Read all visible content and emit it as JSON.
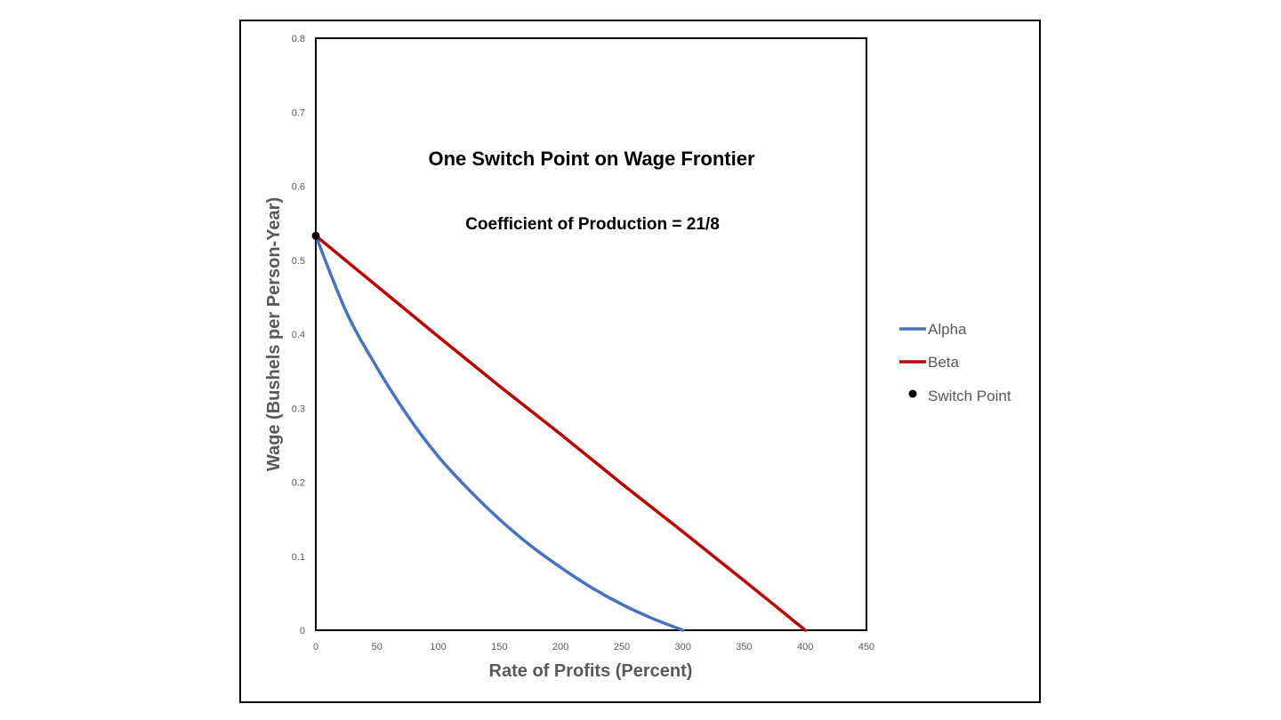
{
  "chart_data": {
    "type": "line",
    "title": "One Switch Point on Wage Frontier",
    "subtitle": "Coefficient of Production = 21/8",
    "xlabel": "Rate of Profits (Percent)",
    "ylabel": "Wage (Bushels per Person-Year)",
    "xlim": [
      0,
      450
    ],
    "ylim": [
      0,
      0.8
    ],
    "x_ticks": [
      "0",
      "50",
      "100",
      "150",
      "200",
      "250",
      "300",
      "350",
      "400",
      "450"
    ],
    "y_ticks": [
      "0",
      "0.1",
      "0.2",
      "0.3",
      "0.4",
      "0.5",
      "0.6",
      "0.7",
      "0.8"
    ],
    "grid": false,
    "legend_position": "right",
    "colors": {
      "alpha": "#4472C4",
      "beta": "#C00000",
      "switch_point": "#000000"
    },
    "series": [
      {
        "name": "Alpha",
        "type": "line",
        "x": [
          0,
          25,
          50,
          75,
          100,
          125,
          150,
          175,
          200,
          225,
          250,
          275,
          300
        ],
        "y": [
          0.533,
          0.43,
          0.355,
          0.29,
          0.235,
          0.19,
          0.15,
          0.115,
          0.085,
          0.058,
          0.035,
          0.016,
          0.0
        ]
      },
      {
        "name": "Beta",
        "type": "line",
        "x": [
          0,
          50,
          100,
          150,
          200,
          250,
          300,
          350,
          400
        ],
        "y": [
          0.533,
          0.465,
          0.397,
          0.33,
          0.265,
          0.198,
          0.133,
          0.067,
          0.0
        ]
      },
      {
        "name": "Switch Point",
        "type": "scatter",
        "x": [
          0
        ],
        "y": [
          0.533
        ]
      }
    ]
  }
}
